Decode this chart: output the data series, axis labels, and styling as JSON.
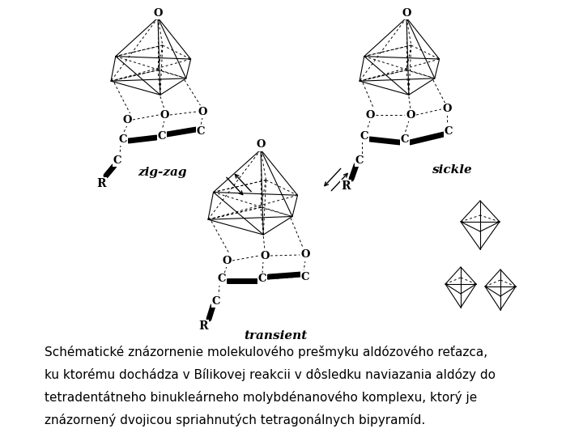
{
  "background_color": "#ffffff",
  "caption_lines": [
    "Schématické znázornenie molekulového prešmyku aldózového reťazca,",
    "ku ktorému dochádza v Bílikovej reakcii v dôsledku naviazania aldózy do",
    "tetradentátneho binukleárneho molybdénanového komplexu, ktorý je",
    "znázornený dvojicou spriahnutých tetragonálnych bipyramíd."
  ],
  "caption_fontsize": 11.0,
  "label_zigzag": "zig-zag",
  "label_sickle": "sickle",
  "label_transient": "transient",
  "figsize": [
    7.2,
    5.4
  ],
  "dpi": 100
}
